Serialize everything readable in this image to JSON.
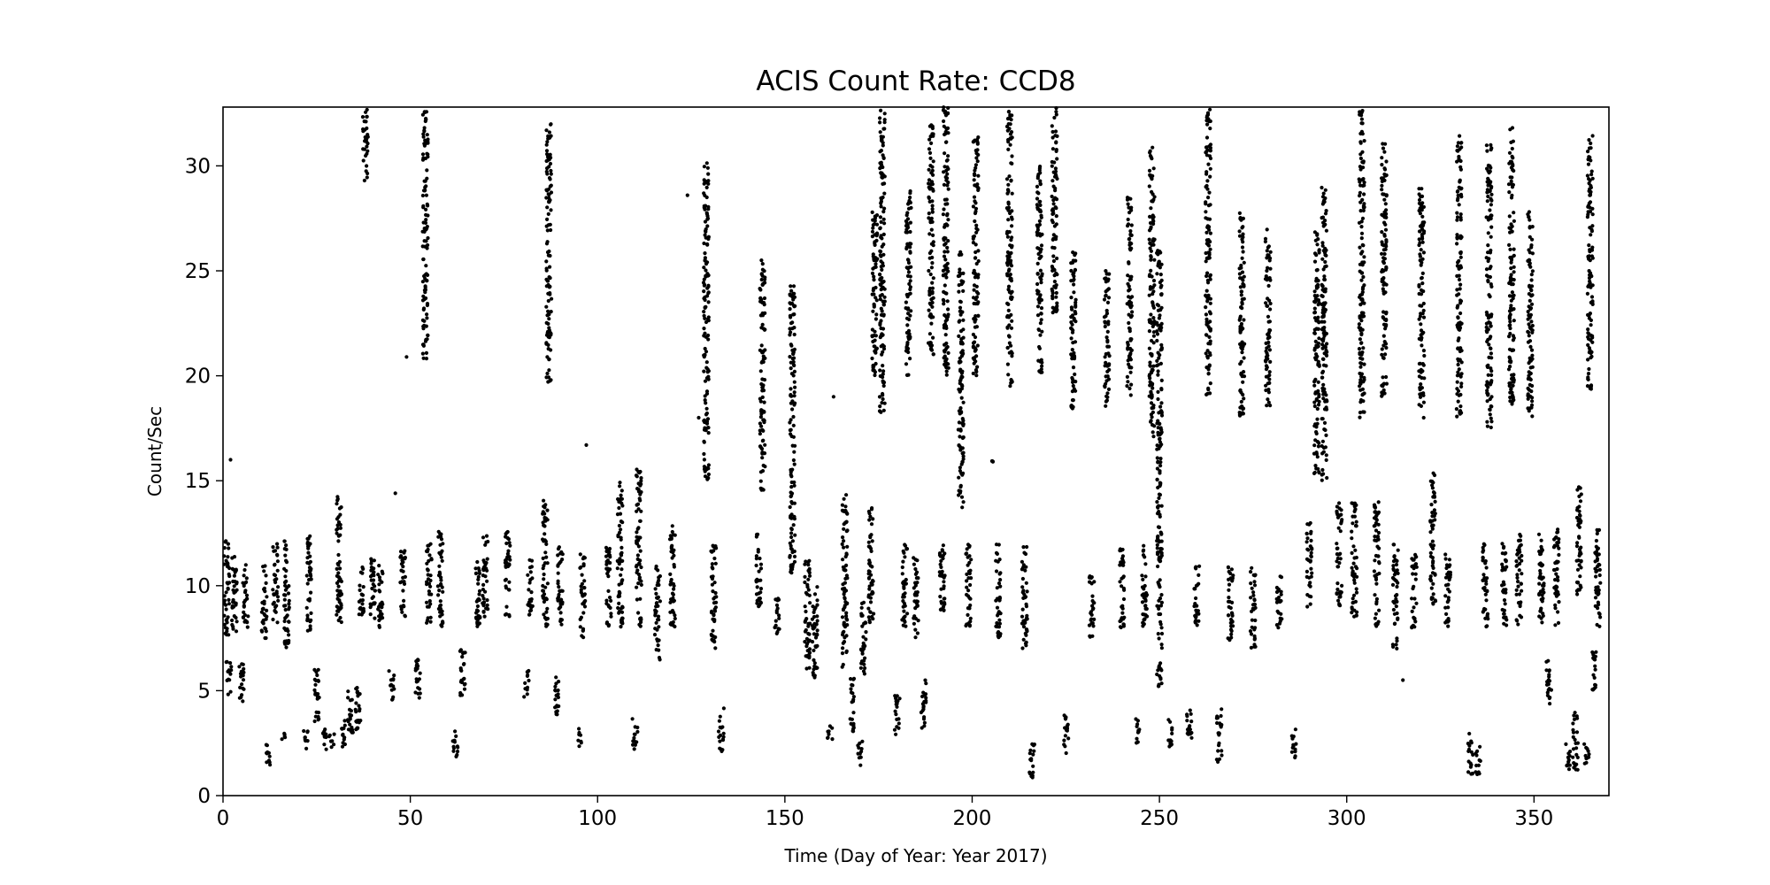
{
  "chart_data": {
    "type": "scatter",
    "title": "ACIS Count Rate: CCD8",
    "xlabel": "Time (Day of Year: Year 2017)",
    "ylabel": "Count/Sec",
    "xlim": [
      0,
      370
    ],
    "ylim": [
      0,
      32.8
    ],
    "x_ticks": [
      0,
      50,
      100,
      150,
      200,
      250,
      300,
      350
    ],
    "y_ticks": [
      0,
      5,
      10,
      15,
      20,
      25,
      30
    ],
    "grid": false,
    "legend": "none",
    "marker_color": "#000000",
    "series": [
      {
        "clusters": [
          {
            "x": 1,
            "y": [
              7.5,
              12.2
            ]
          },
          {
            "x": 1.5,
            "y": [
              4.8,
              6.5
            ]
          },
          {
            "x": 2,
            "y": 16
          },
          {
            "x": 3,
            "y": [
              7.8,
              11.5
            ]
          },
          {
            "x": 5,
            "y": [
              4.2,
              6.3
            ]
          },
          {
            "x": 6,
            "y": [
              8,
              11
            ]
          },
          {
            "x": 11,
            "y": [
              7.5,
              11
            ]
          },
          {
            "x": 12,
            "y": [
              1.3,
              2.5
            ]
          },
          {
            "x": 14,
            "y": [
              8,
              12
            ]
          },
          {
            "x": 16,
            "y": [
              2.5,
              3
            ]
          },
          {
            "x": 17,
            "y": [
              7,
              12.2
            ]
          },
          {
            "x": 22,
            "y": [
              2.2,
              3.2
            ]
          },
          {
            "x": 23,
            "y": [
              7.8,
              12.5
            ]
          },
          {
            "x": 25,
            "y": [
              3.5,
              6
            ]
          },
          {
            "x": 27,
            "y": [
              2,
              3.2
            ]
          },
          {
            "x": 29,
            "y": [
              2.2,
              3
            ]
          },
          {
            "x": 31,
            "y": [
              8,
              14.4
            ]
          },
          {
            "x": 32,
            "y": [
              2.2,
              3.6
            ]
          },
          {
            "x": 34,
            "y": [
              2.8,
              5
            ]
          },
          {
            "x": 36,
            "y": [
              3,
              5.5
            ]
          },
          {
            "x": 37,
            "y": [
              8.5,
              11
            ]
          },
          {
            "x": 38,
            "y": [
              29.2,
              32.8
            ]
          },
          {
            "x": 40,
            "y": [
              8.3,
              11.5
            ]
          },
          {
            "x": 42,
            "y": [
              8,
              11
            ]
          },
          {
            "x": 45,
            "y": [
              4.5,
              6
            ]
          },
          {
            "x": 46,
            "y": 14.4
          },
          {
            "x": 48,
            "y": [
              8.5,
              11.8
            ]
          },
          {
            "x": 49,
            "y": 20.9
          },
          {
            "x": 52,
            "y": [
              4.3,
              6.5
            ]
          },
          {
            "x": 54,
            "y": [
              20.8,
              32.6
            ]
          },
          {
            "x": 55,
            "y": [
              8,
              12
            ]
          },
          {
            "x": 58,
            "y": [
              8,
              12.8
            ]
          },
          {
            "x": 62,
            "y": [
              1.8,
              3.3
            ]
          },
          {
            "x": 64,
            "y": [
              4.6,
              7
            ]
          },
          {
            "x": 68,
            "y": [
              8,
              11.5
            ]
          },
          {
            "x": 70,
            "y": [
              8.5,
              12.4
            ]
          },
          {
            "x": 76,
            "y": [
              8.5,
              12.6
            ]
          },
          {
            "x": 81,
            "y": [
              4.7,
              6
            ]
          },
          {
            "x": 82,
            "y": [
              8.6,
              11.3
            ]
          },
          {
            "x": 86,
            "y": [
              8,
              14.1
            ]
          },
          {
            "x": 87,
            "y": [
              19.7,
              32
            ]
          },
          {
            "x": 89,
            "y": [
              3.8,
              6
            ]
          },
          {
            "x": 90,
            "y": [
              8,
              12
            ]
          },
          {
            "x": 95,
            "y": [
              2.3,
              3.2
            ]
          },
          {
            "x": 96,
            "y": [
              7.5,
              11.5
            ]
          },
          {
            "x": 97,
            "y": 16.7
          },
          {
            "x": 103,
            "y": [
              8,
              12
            ]
          },
          {
            "x": 106,
            "y": [
              8,
              15
            ]
          },
          {
            "x": 110,
            "y": [
              2.1,
              3.7
            ]
          },
          {
            "x": 111,
            "y": [
              8,
              15.7
            ]
          },
          {
            "x": 116,
            "y": [
              6.4,
              11
            ]
          },
          {
            "x": 120,
            "y": [
              8,
              12.9
            ]
          },
          {
            "x": 124,
            "y": 28.6
          },
          {
            "x": 127,
            "y": 18
          },
          {
            "x": 129,
            "y": [
              15,
              30.2
            ]
          },
          {
            "x": 131,
            "y": [
              7,
              12
            ]
          },
          {
            "x": 133,
            "y": [
              2.1,
              4.2
            ]
          },
          {
            "x": 143,
            "y": [
              9,
              12.5
            ]
          },
          {
            "x": 144,
            "y": [
              14.5,
              25.6
            ]
          },
          {
            "x": 148,
            "y": [
              7.5,
              9.5
            ]
          },
          {
            "x": 152,
            "y": [
              10.5,
              24.4
            ]
          },
          {
            "x": 156,
            "y": [
              6,
              11.5
            ]
          },
          {
            "x": 158,
            "y": [
              5.5,
              10
            ]
          },
          {
            "x": 162,
            "y": [
              2.6,
              3.5
            ]
          },
          {
            "x": 163,
            "y": 19
          },
          {
            "x": 166,
            "y": [
              6,
              14.5
            ]
          },
          {
            "x": 168,
            "y": [
              3,
              5.6
            ]
          },
          {
            "x": 170,
            "y": [
              1.4,
              2.6
            ]
          },
          {
            "x": 171,
            "y": [
              5.8,
              9.5
            ]
          },
          {
            "x": 173,
            "y": [
              8.2,
              14
            ]
          },
          {
            "x": 174,
            "y": [
              20,
              28
            ]
          },
          {
            "x": 176,
            "y": [
              18,
              32.7
            ]
          },
          {
            "x": 180,
            "y": [
              2.7,
              4.8
            ]
          },
          {
            "x": 182,
            "y": [
              8,
              12
            ]
          },
          {
            "x": 183,
            "y": [
              20,
              29
            ]
          },
          {
            "x": 185,
            "y": [
              7.5,
              11.5
            ]
          },
          {
            "x": 187,
            "y": [
              3.2,
              5.5
            ]
          },
          {
            "x": 189,
            "y": [
              21,
              32
            ]
          },
          {
            "x": 192,
            "y": [
              8,
              12
            ]
          },
          {
            "x": 193,
            "y": [
              20,
              32.8
            ]
          },
          {
            "x": 197,
            "y": [
              13.7,
              26
            ]
          },
          {
            "x": 199,
            "y": [
              8,
              12
            ]
          },
          {
            "x": 201,
            "y": [
              20,
              31.4
            ]
          },
          {
            "x": 205,
            "y": [
              15.9,
              16.1
            ]
          },
          {
            "x": 207,
            "y": [
              7.5,
              12
            ]
          },
          {
            "x": 210,
            "y": [
              19.5,
              32.7
            ]
          },
          {
            "x": 214,
            "y": [
              7,
              12
            ]
          },
          {
            "x": 216,
            "y": [
              0.6,
              2.5
            ]
          },
          {
            "x": 218,
            "y": [
              20,
              30
            ]
          },
          {
            "x": 222,
            "y": [
              23,
              32.8
            ]
          },
          {
            "x": 225,
            "y": [
              1.9,
              4
            ]
          },
          {
            "x": 227,
            "y": [
              18.4,
              26
            ]
          },
          {
            "x": 232,
            "y": [
              7.5,
              10.5
            ]
          },
          {
            "x": 236,
            "y": [
              18.4,
              25
            ]
          },
          {
            "x": 240,
            "y": [
              8,
              12
            ]
          },
          {
            "x": 242,
            "y": [
              19,
              28.5
            ]
          },
          {
            "x": 244,
            "y": [
              2.5,
              3.7
            ]
          },
          {
            "x": 246,
            "y": [
              8,
              12
            ]
          },
          {
            "x": 248,
            "y": [
              17,
              31
            ]
          },
          {
            "x": 250,
            "y": [
              5.2,
              26
            ]
          },
          {
            "x": 253,
            "y": [
              2.3,
              3.7
            ]
          },
          {
            "x": 258,
            "y": [
              2.5,
              4.5
            ]
          },
          {
            "x": 260,
            "y": [
              8,
              11
            ]
          },
          {
            "x": 263,
            "y": [
              19,
              32.7
            ]
          },
          {
            "x": 266,
            "y": [
              1.6,
              4.2
            ]
          },
          {
            "x": 269,
            "y": [
              7,
              11
            ]
          },
          {
            "x": 272,
            "y": [
              18,
              28
            ]
          },
          {
            "x": 275,
            "y": [
              7,
              11
            ]
          },
          {
            "x": 279,
            "y": [
              18.5,
              27
            ]
          },
          {
            "x": 282,
            "y": [
              8,
              10.5
            ]
          },
          {
            "x": 286,
            "y": [
              1.8,
              3.3
            ]
          },
          {
            "x": 290,
            "y": [
              9,
              13
            ]
          },
          {
            "x": 292,
            "y": [
              15,
              27
            ]
          },
          {
            "x": 294,
            "y": [
              15,
              29
            ]
          },
          {
            "x": 298,
            "y": [
              9,
              14
            ]
          },
          {
            "x": 302,
            "y": [
              8.5,
              14
            ]
          },
          {
            "x": 304,
            "y": [
              18,
              32.7
            ]
          },
          {
            "x": 308,
            "y": [
              8,
              14
            ]
          },
          {
            "x": 310,
            "y": [
              19,
              31.2
            ]
          },
          {
            "x": 313,
            "y": [
              7,
              12
            ]
          },
          {
            "x": 315,
            "y": 5.5
          },
          {
            "x": 318,
            "y": [
              8,
              11.5
            ]
          },
          {
            "x": 320,
            "y": [
              18,
              29
            ]
          },
          {
            "x": 323,
            "y": [
              9,
              15.4
            ]
          },
          {
            "x": 327,
            "y": [
              8,
              11.5
            ]
          },
          {
            "x": 330,
            "y": [
              18,
              31.5
            ]
          },
          {
            "x": 333,
            "y": [
              1,
              3
            ]
          },
          {
            "x": 335,
            "y": [
              1,
              2.5
            ]
          },
          {
            "x": 337,
            "y": [
              8,
              12
            ]
          },
          {
            "x": 338,
            "y": [
              17.5,
              31
            ]
          },
          {
            "x": 342,
            "y": [
              8,
              12
            ]
          },
          {
            "x": 344,
            "y": [
              18.5,
              32
            ]
          },
          {
            "x": 346,
            "y": [
              8,
              12.5
            ]
          },
          {
            "x": 349,
            "y": [
              17.8,
              28
            ]
          },
          {
            "x": 352,
            "y": [
              8,
              12.5
            ]
          },
          {
            "x": 354,
            "y": [
              4.3,
              6.5
            ]
          },
          {
            "x": 356,
            "y": [
              8,
              12.7
            ]
          },
          {
            "x": 359,
            "y": [
              1.2,
              2.5
            ]
          },
          {
            "x": 361,
            "y": [
              1.2,
              4
            ]
          },
          {
            "x": 362,
            "y": [
              9.5,
              14.7
            ]
          },
          {
            "x": 364,
            "y": [
              1.3,
              2.5
            ]
          },
          {
            "x": 365,
            "y": [
              19.3,
              31.5
            ]
          },
          {
            "x": 366,
            "y": [
              5,
              7
            ]
          },
          {
            "x": 367,
            "y": [
              7.8,
              12.8
            ]
          }
        ]
      }
    ]
  }
}
